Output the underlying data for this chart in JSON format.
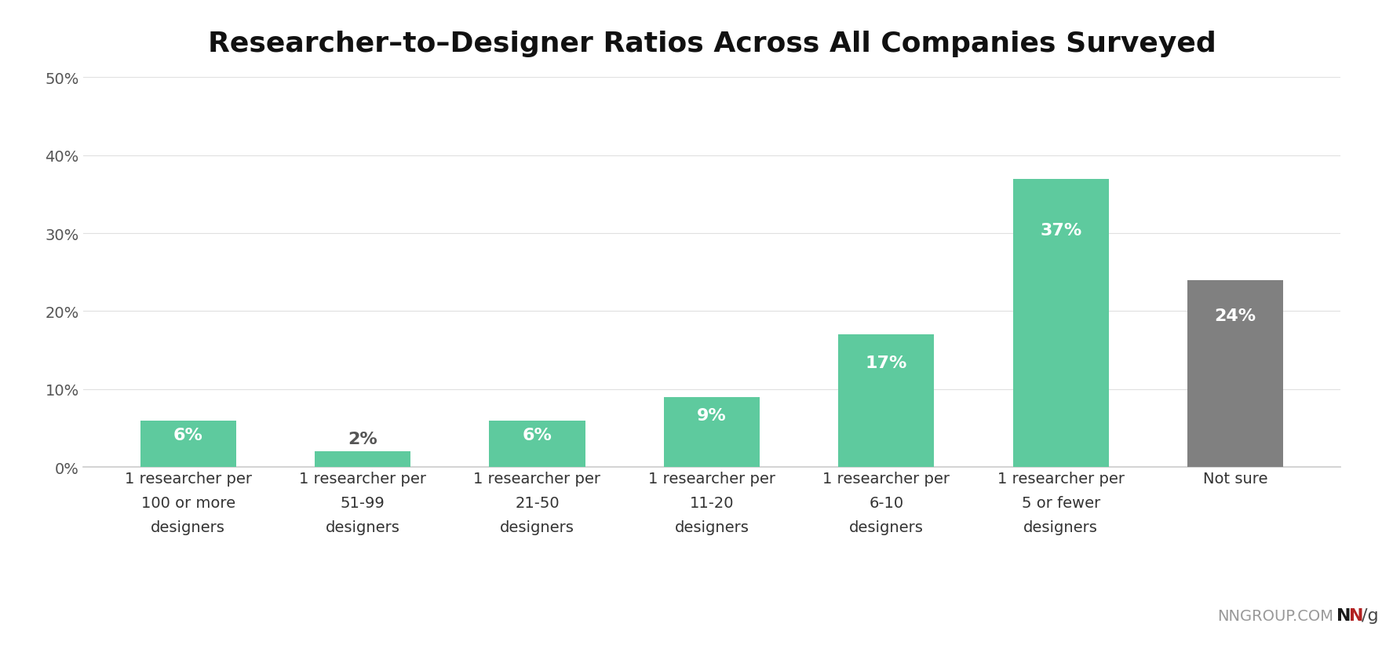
{
  "title": "Researcher–to–Designer Ratios Across All Companies Surveyed",
  "categories": [
    "1 researcher per\n100 or more\ndesigners",
    "1 researcher per\n51-99\ndesigners",
    "1 researcher per\n21-50\ndesigners",
    "1 researcher per\n11-20\ndesigners",
    "1 researcher per\n6-10\ndesigners",
    "1 researcher per\n5 or fewer\ndesigners",
    "Not sure"
  ],
  "values": [
    6,
    2,
    6,
    9,
    17,
    37,
    24
  ],
  "bar_colors": [
    "#5eca9e",
    "#5eca9e",
    "#5eca9e",
    "#5eca9e",
    "#5eca9e",
    "#5eca9e",
    "#808080"
  ],
  "ylim": [
    0,
    50
  ],
  "yticks": [
    0,
    10,
    20,
    30,
    40,
    50
  ],
  "ytick_labels": [
    "0%",
    "10%",
    "20%",
    "30%",
    "40%",
    "50%"
  ],
  "background_color": "#ffffff",
  "title_fontsize": 26,
  "bar_label_fontsize": 16,
  "tick_label_fontsize": 14,
  "watermark_nngroup": "NNGROUP.COM",
  "watermark_n1": "N",
  "watermark_n2": "N",
  "watermark_slash_g": "/g",
  "watermark_color_nngroup": "#999999",
  "watermark_color_n1": "#1a1a1a",
  "watermark_color_n2": "#b22222",
  "watermark_color_slash_g": "#444444"
}
